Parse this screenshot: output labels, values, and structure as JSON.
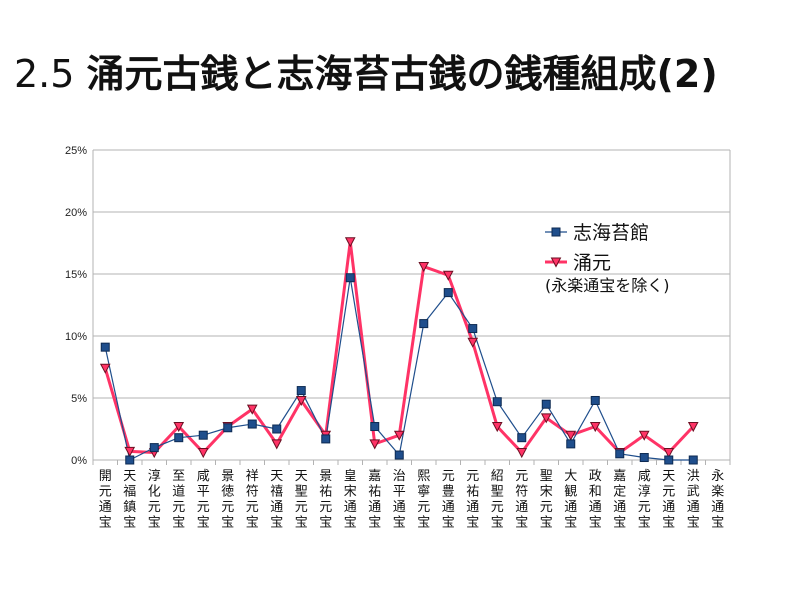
{
  "slide": {
    "number": "2.5",
    "title": "涌元古銭と志海苔古銭の銭種組成(2)"
  },
  "chart_data": {
    "type": "line",
    "title": "",
    "xlabel": "",
    "ylabel": "",
    "ylim": [
      0,
      25
    ],
    "y_ticks": [
      "0%",
      "5%",
      "10%",
      "15%",
      "20%",
      "25%"
    ],
    "y_tick_values": [
      0,
      5,
      10,
      15,
      20,
      25
    ],
    "grid": true,
    "legend_position": "right",
    "legend_note": "(永楽通宝を除く)",
    "categories": [
      "開元通宝",
      "天福鎮宝",
      "淳化元宝",
      "至道元宝",
      "咸平元宝",
      "景徳元宝",
      "祥符元宝",
      "天禧通宝",
      "天聖元宝",
      "景祐元宝",
      "皇宋通宝",
      "嘉祐通宝",
      "治平通宝",
      "熙寧元宝",
      "元豊通宝",
      "元祐通宝",
      "紹聖元宝",
      "元符通宝",
      "聖宋元宝",
      "大観通宝",
      "政和通宝",
      "嘉定通宝",
      "咸淳元宝",
      "天元通宝",
      "洪武通宝",
      "永楽通宝"
    ],
    "series": [
      {
        "name": "志海苔館",
        "color": "#1f4e8c",
        "marker": "square",
        "values": [
          9.1,
          0.0,
          1.0,
          1.8,
          2.0,
          2.6,
          2.9,
          2.5,
          5.6,
          1.7,
          14.7,
          2.7,
          0.4,
          11.0,
          13.5,
          10.6,
          4.7,
          1.8,
          4.5,
          1.3,
          4.8,
          0.5,
          0.2,
          0.0,
          0.0,
          null
        ]
      },
      {
        "name": "涌元",
        "color": "#ff3366",
        "marker": "triangle-down",
        "values": [
          7.4,
          0.7,
          0.6,
          2.7,
          0.6,
          2.7,
          4.1,
          1.3,
          4.8,
          2.0,
          17.6,
          1.3,
          2.0,
          15.6,
          14.9,
          9.5,
          2.7,
          0.6,
          3.4,
          2.0,
          2.7,
          0.6,
          2.0,
          0.6,
          2.7,
          null
        ]
      }
    ]
  }
}
